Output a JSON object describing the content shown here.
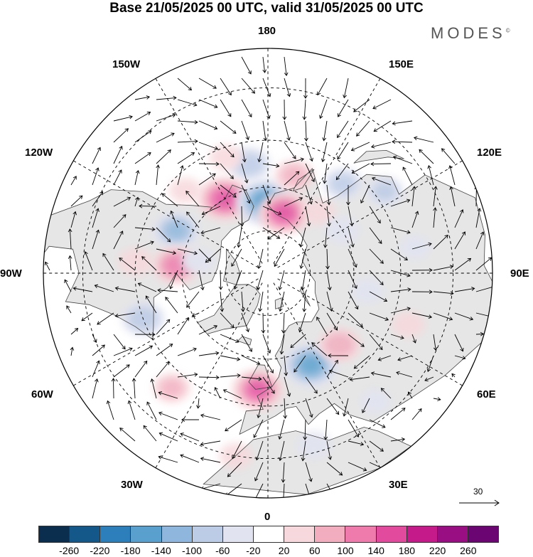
{
  "header": {
    "title": "Base 21/05/2025 00 UTC, valid 31/05/2025 00 UTC",
    "brand": "MODES",
    "brand_mark": "©"
  },
  "longitude_labels": [
    {
      "id": "lon-180",
      "text": "180"
    },
    {
      "id": "lon-150e",
      "text": "150E"
    },
    {
      "id": "lon-120e",
      "text": "120E"
    },
    {
      "id": "lon-90e",
      "text": "90E"
    },
    {
      "id": "lon-60e",
      "text": "60E"
    },
    {
      "id": "lon-30e",
      "text": "30E"
    },
    {
      "id": "lon-0",
      "text": "0"
    },
    {
      "id": "lon-30w",
      "text": "30W"
    },
    {
      "id": "lon-60w",
      "text": "60W"
    },
    {
      "id": "lon-90w",
      "text": "90W"
    },
    {
      "id": "lon-120w",
      "text": "120W"
    },
    {
      "id": "lon-150w",
      "text": "150W"
    }
  ],
  "reference_vector": {
    "label": "30"
  },
  "colorbar": {
    "colors": [
      "#0c2e4e",
      "#14588a",
      "#2c7fba",
      "#5aa0cf",
      "#8fb7dd",
      "#bccbe6",
      "#e1e3f1",
      "#ffffff",
      "#f7d8dc",
      "#f2aebf",
      "#ef7bac",
      "#e24a9d",
      "#c51b8a",
      "#9a0e83",
      "#6a0572"
    ],
    "tick_labels": [
      "-260",
      "-220",
      "-180",
      "-140",
      "-100",
      "-60",
      "-20",
      "20",
      "60",
      "100",
      "140",
      "180",
      "220",
      "260"
    ]
  },
  "map": {
    "anomalies": [
      {
        "lon": -170,
        "lat": 52,
        "value": -90
      },
      {
        "lon": -160,
        "lat": 48,
        "value": 40
      },
      {
        "lon": -135,
        "lat": 50,
        "value": 40
      },
      {
        "lon": -150,
        "lat": 60,
        "value": 160
      },
      {
        "lon": -178,
        "lat": 65,
        "value": -180
      },
      {
        "lon": 165,
        "lat": 55,
        "value": 70
      },
      {
        "lon": 140,
        "lat": 50,
        "value": -70
      },
      {
        "lon": 165,
        "lat": 68,
        "value": 150
      },
      {
        "lon": 125,
        "lat": 42,
        "value": -60
      },
      {
        "lon": 140,
        "lat": 62,
        "value": 40
      },
      {
        "lon": 120,
        "lat": 60,
        "value": -50
      },
      {
        "lon": -115,
        "lat": 55,
        "value": -110
      },
      {
        "lon": -95,
        "lat": 45,
        "value": 50
      },
      {
        "lon": -95,
        "lat": 58,
        "value": 120
      },
      {
        "lon": -100,
        "lat": 65,
        "value": -40
      },
      {
        "lon": -70,
        "lat": 45,
        "value": -90
      },
      {
        "lon": -40,
        "lat": 40,
        "value": 60
      },
      {
        "lon": -5,
        "lat": 50,
        "value": 140
      },
      {
        "lon": 25,
        "lat": 55,
        "value": -160
      },
      {
        "lon": 45,
        "lat": 55,
        "value": 90
      },
      {
        "lon": 80,
        "lat": 55,
        "value": -40
      },
      {
        "lon": 15,
        "lat": 32,
        "value": -50
      },
      {
        "lon": 70,
        "lat": 40,
        "value": 40
      },
      {
        "lon": -10,
        "lat": 30,
        "value": 40
      },
      {
        "lon": 40,
        "lat": 35,
        "value": -30
      },
      {
        "lon": 100,
        "lat": 40,
        "value": -30
      }
    ]
  }
}
